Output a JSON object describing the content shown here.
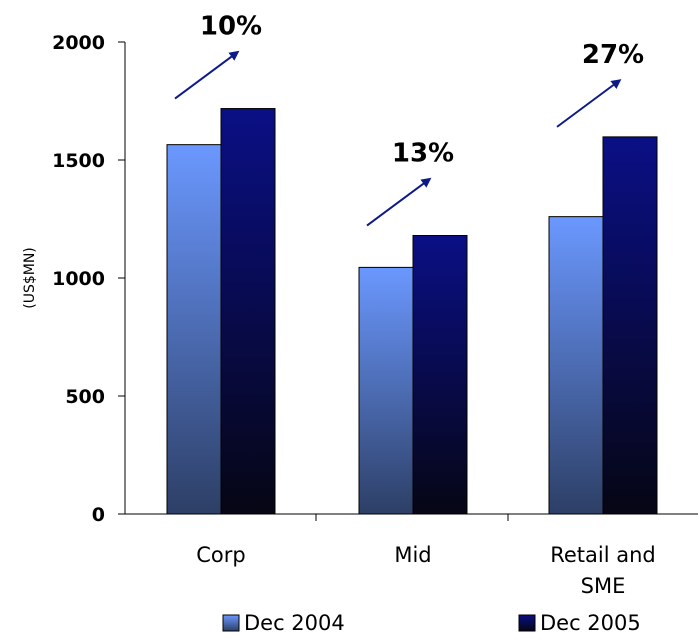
{
  "chart_data": {
    "type": "bar",
    "categories": [
      [
        "Corp"
      ],
      [
        "Mid"
      ],
      [
        "Retail and",
        "SME"
      ]
    ],
    "series": [
      {
        "name": "Dec 2004",
        "values": [
          1565,
          1045,
          1260
        ],
        "color_top": "#6b98ff",
        "color_bottom": "#2d3f66"
      },
      {
        "name": "Dec 2005",
        "values": [
          1718,
          1180,
          1598
        ],
        "color_top": "#0a0f85",
        "color_bottom": "#060614"
      }
    ],
    "ylabel": "(US$MN)",
    "ylim": [
      0,
      2000
    ],
    "yticks": [
      0,
      500,
      1000,
      1500,
      2000
    ],
    "grid": false,
    "legend_position": "bottom",
    "growth_labels": [
      "10%",
      "13%",
      "27%"
    ],
    "arrow_color": "#0d1a8a"
  }
}
